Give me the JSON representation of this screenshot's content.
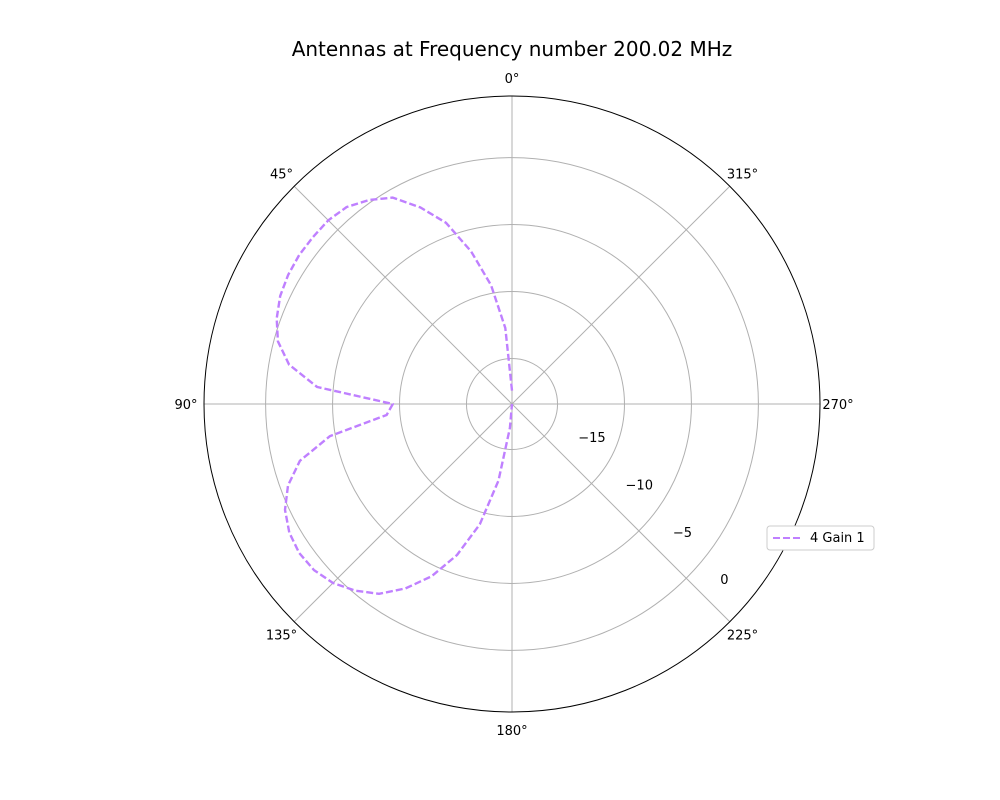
{
  "chart_data": {
    "type": "line",
    "projection": "polar",
    "title": "Antennas at Frequency number 200.02 MHz",
    "theta_zero_location": "top",
    "theta_direction": "counterclockwise",
    "theta_tick_labels": [
      "0°",
      "45°",
      "90°",
      "135°",
      "180°",
      "225°",
      "270°",
      "315°"
    ],
    "r_tick_labels": [
      "−15",
      "−10",
      "−5",
      "0"
    ],
    "r_ticks": [
      -15,
      -10,
      -5,
      0
    ],
    "rlim": [
      -18.4,
      4.6
    ],
    "grid": true,
    "legend_position": "right",
    "series": [
      {
        "name": "4 Gain 1",
        "color": "#bf80ff",
        "line_style": "dashed",
        "theta_deg": [
          0,
          5,
          10,
          15,
          20,
          25,
          30,
          35,
          40,
          45,
          50,
          55,
          60,
          65,
          70,
          75,
          80,
          85,
          90,
          95,
          100,
          105,
          110,
          115,
          120,
          125,
          130,
          135,
          140,
          145,
          150,
          155,
          160,
          165,
          170,
          175,
          180
        ],
        "r": [
          -17.4,
          -12.7,
          -9.4,
          -6.6,
          -4.0,
          -2.2,
          -0.6,
          0.2,
          0.8,
          1.0,
          1.0,
          1.0,
          0.9,
          0.7,
          0.3,
          -0.3,
          -1.5,
          -3.8,
          -9.5,
          -9.0,
          -4.6,
          -2.0,
          -0.6,
          0.3,
          0.8,
          1.0,
          0.9,
          0.5,
          -0.2,
          -1.1,
          -2.5,
          -4.2,
          -6.4,
          -9.1,
          -12.6,
          -16.6,
          -18.4
        ]
      }
    ]
  }
}
